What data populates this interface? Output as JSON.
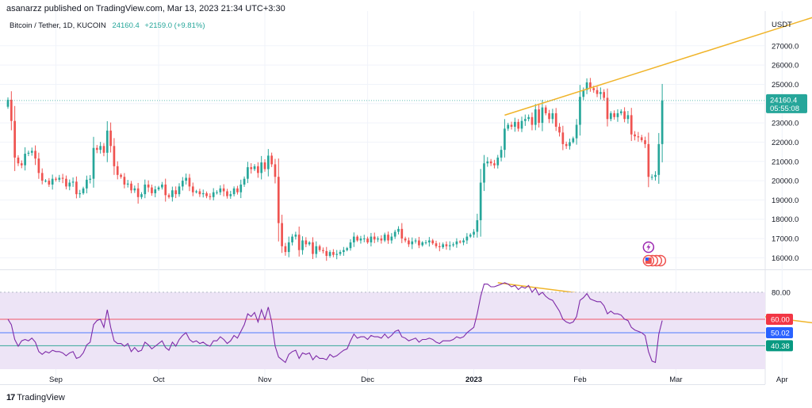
{
  "header": {
    "published_text": "asanarzz published on TradingView.com, Mar 13, 2023 21:34 UTC+3:30"
  },
  "legend": {
    "symbol": "Bitcoin / Tether, 1D, KUCOIN",
    "last": "24160.4",
    "change": "+2159.0 (+9.81%)"
  },
  "brand": {
    "logo": "17",
    "name": "TradingView"
  },
  "colors": {
    "up": "#26a69a",
    "down": "#ef5350",
    "trendline": "#f0b429",
    "rsi_line": "#7e2aa8",
    "rsi_band": "#ede4f6",
    "level_60": "#f23645",
    "level_50": "#2962ff",
    "level_40": "#089981"
  },
  "chart_data": [
    {
      "type": "candlestick",
      "title": "Bitcoin / Tether, 1D, KUCOIN",
      "currency": "USDT",
      "ylim": [
        15400,
        28800
      ],
      "y_ticks": [
        "27000.0",
        "26000.0",
        "25000.0",
        "24000.0",
        "23000.0",
        "22000.0",
        "21000.0",
        "20000.0",
        "19000.0",
        "18000.0",
        "17000.0",
        "16000.0"
      ],
      "x_ticks": [
        {
          "label": "Sep",
          "day": 14
        },
        {
          "label": "Oct",
          "day": 44
        },
        {
          "label": "Nov",
          "day": 75
        },
        {
          "label": "Dec",
          "day": 105
        },
        {
          "label": "2023",
          "day": 136
        },
        {
          "label": "Feb",
          "day": 167
        },
        {
          "label": "Mar",
          "day": 195
        },
        {
          "label": "Apr",
          "day": 226
        }
      ],
      "current_price": {
        "value": "24160.4",
        "countdown": "05:55:08"
      },
      "closes": [
        24200,
        23100,
        21200,
        20900,
        20800,
        21400,
        21450,
        21550,
        21150,
        20400,
        20000,
        20000,
        19800,
        20100,
        20050,
        20150,
        20100,
        19700,
        19900,
        19950,
        19300,
        19350,
        19600,
        20050,
        20100,
        21700,
        21600,
        21800,
        21450,
        22600,
        21800,
        20750,
        20300,
        20200,
        19800,
        19850,
        19500,
        19600,
        19150,
        19300,
        19800,
        19650,
        19350,
        19550,
        19650,
        19800,
        19250,
        19150,
        19500,
        19300,
        19700,
        20000,
        20150,
        19700,
        19400,
        19450,
        19300,
        19350,
        19200,
        19150,
        19400,
        19400,
        19600,
        19450,
        19200,
        19300,
        19600,
        19400,
        19800,
        20100,
        20700,
        20600,
        20750,
        20400,
        20950,
        20600,
        21300,
        20850,
        20200,
        17800,
        16600,
        16300,
        16800,
        17100,
        17200,
        16400,
        16900,
        16700,
        16800,
        16200,
        16600,
        16400,
        16350,
        16100,
        16300,
        16150,
        16200,
        16300,
        16400,
        16500,
        16800,
        17100,
        16900,
        17000,
        17000,
        16800,
        17100,
        16950,
        17000,
        16900,
        17200,
        16900,
        17100,
        17350,
        17500,
        17000,
        16900,
        16700,
        16850,
        16900,
        16650,
        16800,
        16800,
        16900,
        16750,
        16600,
        16550,
        16700,
        16600,
        16650,
        16700,
        16850,
        16800,
        16900,
        17100,
        17200,
        17350,
        17950,
        19900,
        20900,
        21000,
        20900,
        20800,
        21200,
        21600,
        22700,
        22900,
        22800,
        23050,
        22700,
        23100,
        23200,
        23300,
        22900,
        23700,
        23000,
        23800,
        23500,
        23200,
        23500,
        22800,
        22500,
        21900,
        21800,
        22000,
        22200,
        22900,
        24350,
        24700,
        25100,
        24800,
        24700,
        24500,
        24600,
        24300,
        23200,
        23500,
        23300,
        23500,
        23600,
        23200,
        23400,
        22400,
        22300,
        22250,
        22100,
        21900,
        20200,
        20200,
        20300,
        21900,
        24160
      ],
      "rsi_ylim": [
        23,
        94
      ],
      "rsi_levels": [
        {
          "name": "upper band",
          "value": 80.0,
          "label": "80.00"
        },
        {
          "name": "overbought",
          "value": 60.0,
          "label": "60.00"
        },
        {
          "name": "rsi value",
          "value": 50.02,
          "label": "50.02"
        },
        {
          "name": "oversold",
          "value": 40.38,
          "label": "40.38"
        }
      ],
      "rsi": [
        60,
        56,
        45,
        40,
        44,
        45,
        44,
        46,
        43,
        36,
        34,
        36,
        35,
        37,
        36,
        36,
        35,
        33,
        35,
        36,
        31,
        32,
        35,
        41,
        43,
        56,
        59,
        60,
        54,
        67,
        54,
        44,
        42,
        42,
        40,
        42,
        36,
        39,
        36,
        37,
        43,
        41,
        38,
        40,
        42,
        44,
        39,
        37,
        43,
        40,
        45,
        48,
        50,
        45,
        43,
        44,
        42,
        43,
        41,
        40,
        44,
        44,
        47,
        45,
        42,
        44,
        48,
        46,
        51,
        56,
        64,
        62,
        65,
        58,
        67,
        60,
        69,
        58,
        40,
        32,
        30,
        28,
        34,
        36,
        37,
        31,
        35,
        34,
        35,
        30,
        33,
        31,
        31,
        30,
        34,
        32,
        33,
        35,
        37,
        38,
        44,
        49,
        46,
        47,
        47,
        45,
        48,
        47,
        47,
        46,
        49,
        46,
        48,
        51,
        52,
        47,
        46,
        44,
        45,
        46,
        43,
        45,
        45,
        46,
        45,
        43,
        42,
        44,
        44,
        44,
        45,
        47,
        46,
        47,
        50,
        52,
        54,
        64,
        77,
        86,
        86,
        84,
        84,
        85,
        86,
        87,
        86,
        84,
        85,
        82,
        84,
        83,
        85,
        80,
        83,
        78,
        80,
        77,
        75,
        74,
        70,
        66,
        60,
        58,
        57,
        58,
        62,
        74,
        76,
        79,
        75,
        74,
        73,
        73,
        70,
        64,
        66,
        64,
        64,
        63,
        60,
        59,
        54,
        52,
        51,
        50,
        48,
        36,
        29,
        28,
        49,
        59
      ],
      "trendlines": [
        {
          "pane": "price",
          "from": {
            "day": 145,
            "value": 23400
          },
          "to": {
            "day": 239,
            "value": 28700
          }
        },
        {
          "pane": "rsi",
          "from": {
            "day": 143,
            "value": 87
          },
          "to": {
            "day": 239,
            "value": 56
          }
        }
      ]
    }
  ]
}
